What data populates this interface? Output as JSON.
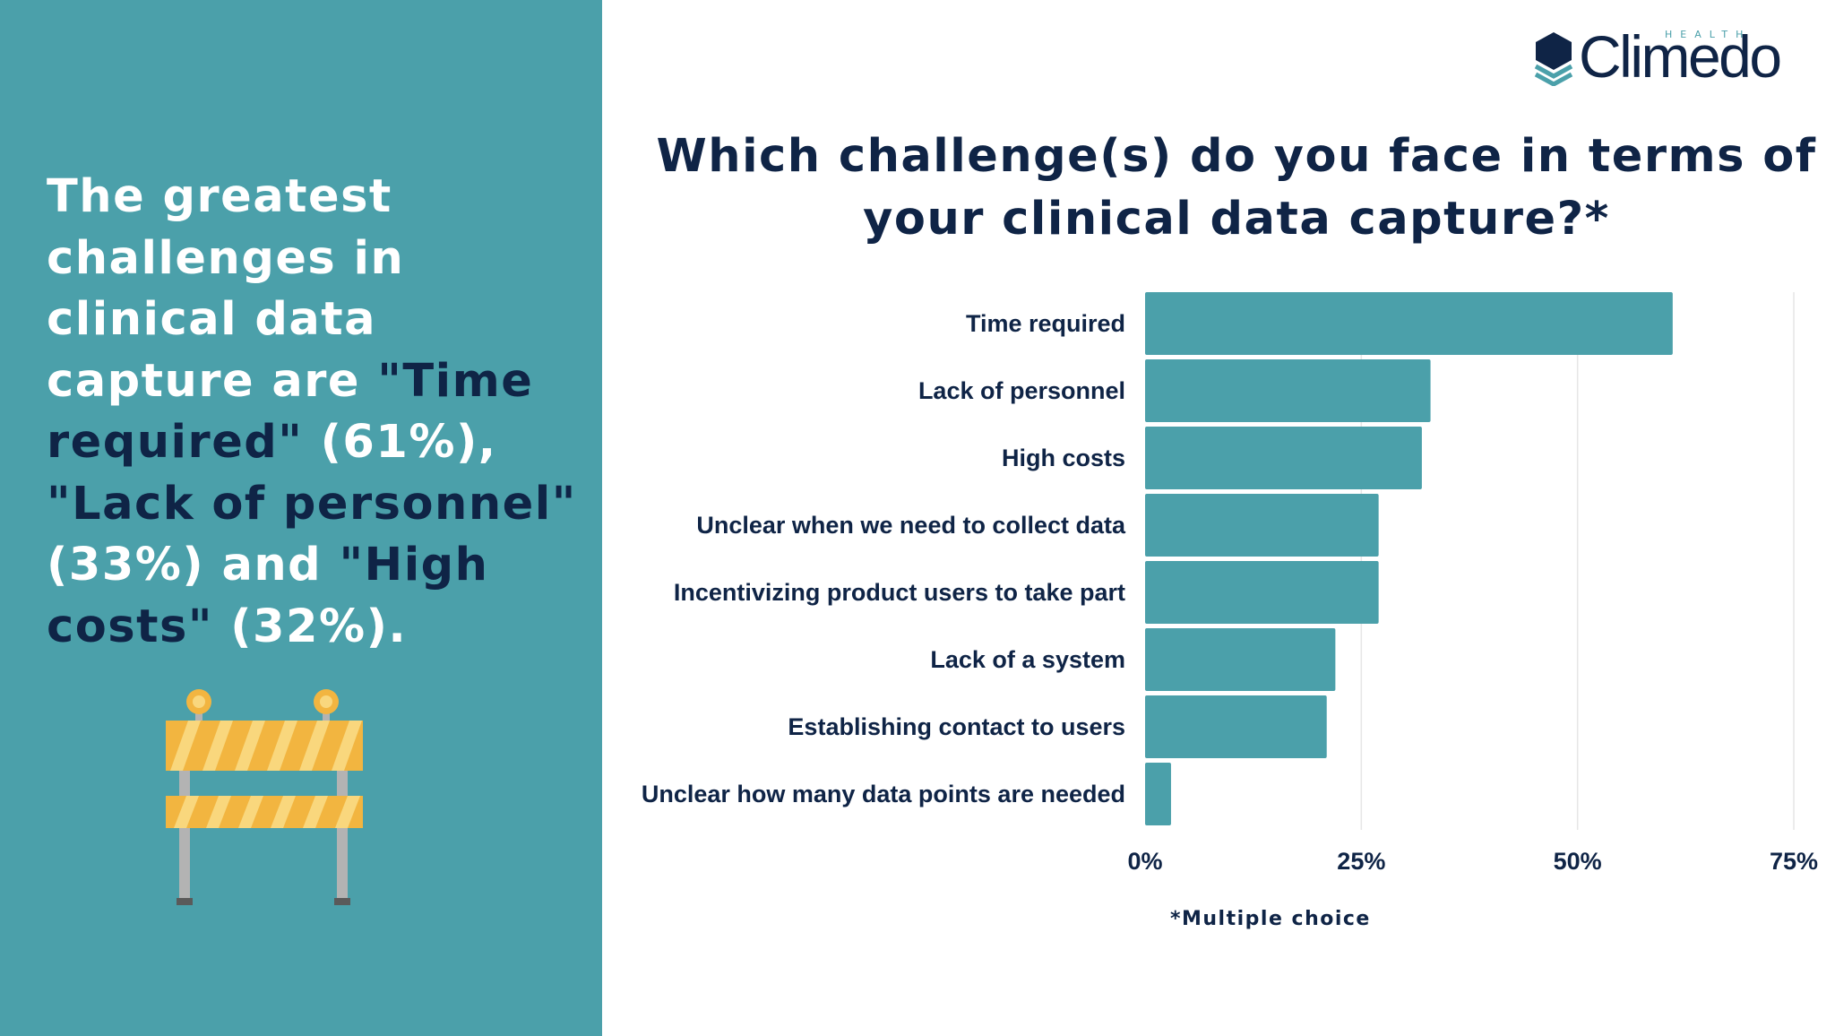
{
  "summary": {
    "parts": [
      {
        "text": "The greatest challenges in clinical data capture are ",
        "highlight": false
      },
      {
        "text": "\"Time required\"",
        "highlight": true
      },
      {
        "text": " (61%), ",
        "highlight": false
      },
      {
        "text": "\"Lack of personnel\"",
        "highlight": true
      },
      {
        "text": " (33%) and ",
        "highlight": false
      },
      {
        "text": "\"High costs\"",
        "highlight": true
      },
      {
        "text": " (32%).",
        "highlight": false
      }
    ]
  },
  "logo": {
    "word": "Climedo",
    "sub": "HEALTH"
  },
  "chart_data": {
    "type": "bar",
    "orientation": "horizontal",
    "title": "Which challenge(s) do you face in terms of your clinical data capture?*",
    "categories": [
      "Time required",
      "Lack of personnel",
      "High costs",
      "Unclear when we need to collect data",
      "Incentivizing product users to take part",
      "Lack of a system",
      "Establishing contact to users",
      "Unclear how many data points are needed"
    ],
    "values": [
      61,
      33,
      32,
      27,
      27,
      22,
      21,
      3
    ],
    "unit": "%",
    "xlim": [
      0,
      75
    ],
    "xticks": [
      0,
      25,
      50,
      75
    ],
    "xtick_labels": [
      "0%",
      "25%",
      "50%",
      "75%"
    ],
    "grid": true,
    "footnote": "*Multiple choice"
  },
  "colors": {
    "panel": "#4ba0aa",
    "bar": "#4ba0aa",
    "navy": "#0f2446",
    "barrier_stripe_yellow": "#f2b540",
    "barrier_stripe_light": "#f9d77d",
    "barrier_leg": "#b3b3b3"
  }
}
